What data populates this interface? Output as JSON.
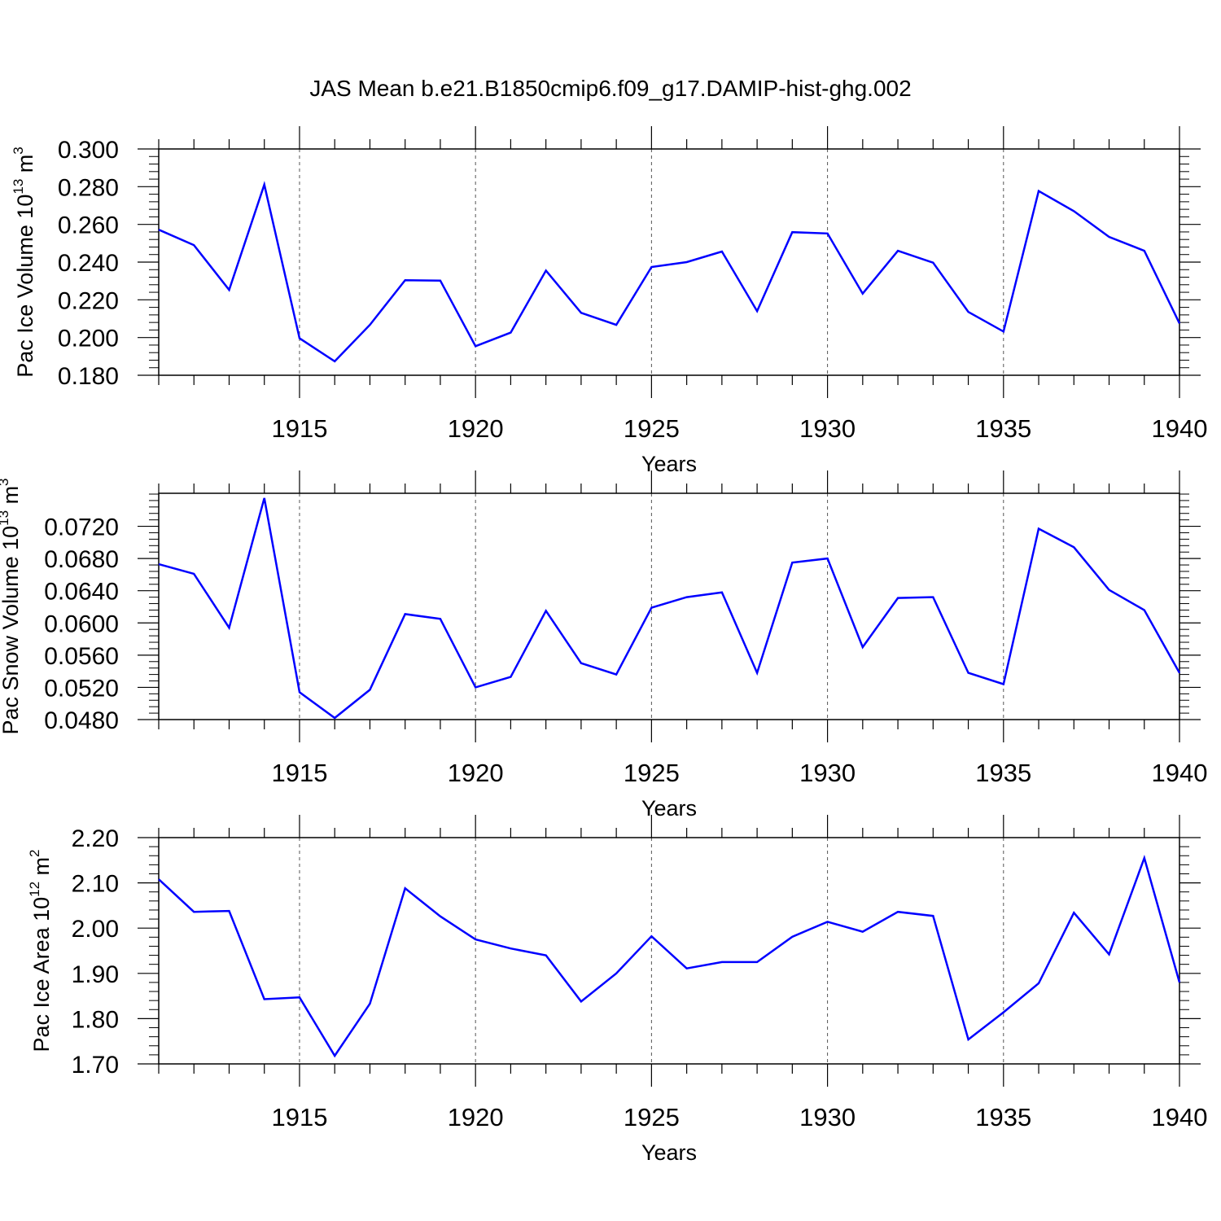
{
  "title": "JAS Mean b.e21.B1850cmip6.f09_g17.DAMIP-hist-ghg.002",
  "colors": {
    "line": "#0000ff",
    "axis": "#000000",
    "grid": "#555555"
  },
  "chart_data": [
    {
      "type": "line",
      "ylabel_main": "Pac Ice Volume 10",
      "ylabel_exp": "13",
      "ylabel_unit": " m",
      "ylabel_unit_exp": "3",
      "xlabel": "Years",
      "xlim": [
        1911,
        1940
      ],
      "ylim": [
        0.18,
        0.3
      ],
      "yticks": [
        0.18,
        0.2,
        0.22,
        0.24,
        0.26,
        0.28,
        0.3
      ],
      "ytick_labels": [
        "0.180",
        "0.200",
        "0.220",
        "0.240",
        "0.260",
        "0.280",
        "0.300"
      ],
      "xticks": [
        1915,
        1920,
        1925,
        1930,
        1935,
        1940
      ],
      "xtick_labels": [
        "1915",
        "1920",
        "1925",
        "1930",
        "1935",
        "1940"
      ],
      "x": [
        1911,
        1912,
        1913,
        1914,
        1915,
        1916,
        1917,
        1918,
        1919,
        1920,
        1921,
        1922,
        1923,
        1924,
        1925,
        1926,
        1927,
        1928,
        1929,
        1930,
        1931,
        1932,
        1933,
        1934,
        1935,
        1936,
        1937,
        1938,
        1939,
        1940
      ],
      "series": [
        {
          "name": "Pac Ice Volume",
          "values": [
            0.2572,
            0.249,
            0.2253,
            0.2811,
            0.1996,
            0.1874,
            0.2067,
            0.2304,
            0.2302,
            0.1954,
            0.2026,
            0.2355,
            0.2131,
            0.2067,
            0.2374,
            0.24,
            0.2456,
            0.214,
            0.2559,
            0.2552,
            0.2233,
            0.246,
            0.2397,
            0.2136,
            0.2032,
            0.2777,
            0.267,
            0.2534,
            0.246,
            0.2075
          ]
        }
      ]
    },
    {
      "type": "line",
      "ylabel_main": "Pac Snow Volume 10",
      "ylabel_exp": "13",
      "ylabel_unit": " m",
      "ylabel_unit_exp": "3",
      "xlabel": "Years",
      "xlim": [
        1911,
        1940
      ],
      "ylim": [
        0.048,
        0.0761
      ],
      "yticks": [
        0.048,
        0.052,
        0.056,
        0.06,
        0.064,
        0.068,
        0.072
      ],
      "ytick_labels": [
        "0.0480",
        "0.0520",
        "0.0560",
        "0.0600",
        "0.0640",
        "0.0680",
        "0.0720"
      ],
      "xticks": [
        1915,
        1920,
        1925,
        1930,
        1935,
        1940
      ],
      "xtick_labels": [
        "1915",
        "1920",
        "1925",
        "1930",
        "1935",
        "1940"
      ],
      "x": [
        1911,
        1912,
        1913,
        1914,
        1915,
        1916,
        1917,
        1918,
        1919,
        1920,
        1921,
        1922,
        1923,
        1924,
        1925,
        1926,
        1927,
        1928,
        1929,
        1930,
        1931,
        1932,
        1933,
        1934,
        1935,
        1936,
        1937,
        1938,
        1939,
        1940
      ],
      "series": [
        {
          "name": "Pac Snow Volume",
          "values": [
            0.0673,
            0.0661,
            0.0594,
            0.0755,
            0.0514,
            0.0482,
            0.0517,
            0.0611,
            0.0605,
            0.052,
            0.0533,
            0.0615,
            0.055,
            0.0536,
            0.0619,
            0.0632,
            0.0638,
            0.0538,
            0.0675,
            0.068,
            0.057,
            0.0631,
            0.0632,
            0.0538,
            0.0524,
            0.0717,
            0.0694,
            0.0641,
            0.0616,
            0.0538
          ]
        }
      ]
    },
    {
      "type": "line",
      "ylabel_main": "Pac Ice Area 10",
      "ylabel_exp": "12",
      "ylabel_unit": " m",
      "ylabel_unit_exp": "2",
      "xlabel": "Years",
      "xlim": [
        1911,
        1940
      ],
      "ylim": [
        1.7,
        2.2
      ],
      "yticks": [
        1.7,
        1.8,
        1.9,
        2.0,
        2.1,
        2.2
      ],
      "ytick_labels": [
        "1.70",
        "1.80",
        "1.90",
        "2.00",
        "2.10",
        "2.20"
      ],
      "xticks": [
        1915,
        1920,
        1925,
        1930,
        1935,
        1940
      ],
      "xtick_labels": [
        "1915",
        "1920",
        "1925",
        "1930",
        "1935",
        "1940"
      ],
      "x": [
        1911,
        1912,
        1913,
        1914,
        1915,
        1916,
        1917,
        1918,
        1919,
        1920,
        1921,
        1922,
        1923,
        1924,
        1925,
        1926,
        1927,
        1928,
        1929,
        1930,
        1931,
        1932,
        1933,
        1934,
        1935,
        1936,
        1937,
        1938,
        1939,
        1940
      ],
      "series": [
        {
          "name": "Pac Ice Area",
          "values": [
            2.108,
            2.036,
            2.038,
            1.843,
            1.847,
            1.718,
            1.833,
            2.088,
            2.026,
            1.975,
            1.955,
            1.94,
            1.838,
            1.9,
            1.982,
            1.911,
            1.925,
            1.925,
            1.981,
            2.014,
            1.992,
            2.036,
            2.027,
            1.754,
            1.814,
            1.878,
            2.034,
            1.942,
            2.155,
            1.88
          ]
        }
      ]
    }
  ]
}
